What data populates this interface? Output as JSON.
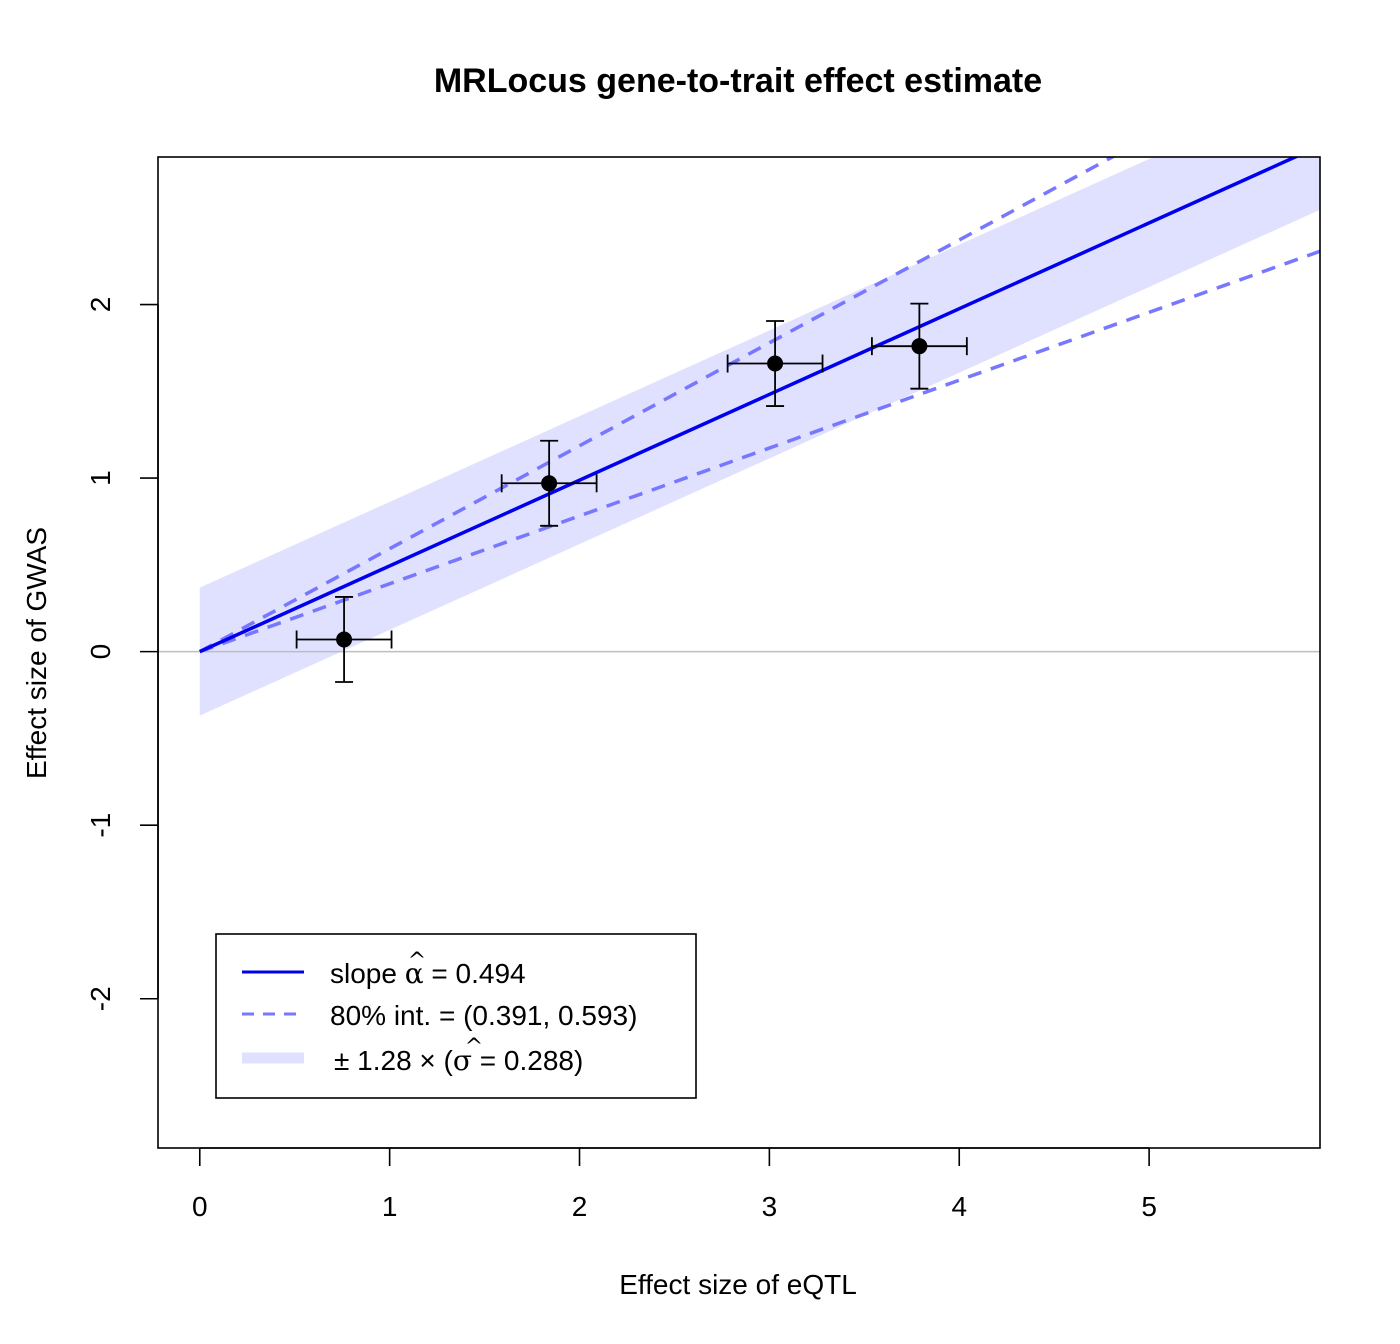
{
  "chart_data": {
    "type": "scatter",
    "title": "MRLocus gene-to-trait effect estimate",
    "xlabel": "Effect size of eQTL",
    "ylabel": "Effect size of GWAS",
    "xlim": [
      -0.22,
      5.9
    ],
    "ylim": [
      -2.86,
      2.85
    ],
    "x_ticks": [
      0,
      1,
      2,
      3,
      4,
      5
    ],
    "y_ticks": [
      -2,
      -1,
      0,
      1,
      2
    ],
    "points": [
      {
        "x": 0.76,
        "y": 0.07,
        "x_err": 0.25,
        "y_err": 0.245
      },
      {
        "x": 1.84,
        "y": 0.97,
        "x_err": 0.25,
        "y_err": 0.245
      },
      {
        "x": 3.03,
        "y": 1.66,
        "x_err": 0.25,
        "y_err": 0.245
      },
      {
        "x": 3.79,
        "y": 1.76,
        "x_err": 0.25,
        "y_err": 0.245
      }
    ],
    "slope": 0.494,
    "interval_low": 0.391,
    "interval_high": 0.593,
    "sigma": 0.288,
    "band_multiplier": 1.28,
    "reference_line_y": 0,
    "colors": {
      "slope_line": "#0000ee",
      "interval_line": "#7777ff",
      "band": "#e0e0ff",
      "points": "#000000",
      "reference": "#bebebe"
    },
    "legend": {
      "placement": "bottom-left",
      "slope_prefix": "slope ",
      "slope_symbol": "α",
      "slope_suffix": " = 0.494",
      "interval_text": "80% int. = (0.391, 0.593)",
      "band_prefix": "± 1.28 × (",
      "band_symbol": "σ",
      "band_suffix": " = 0.288)"
    }
  }
}
